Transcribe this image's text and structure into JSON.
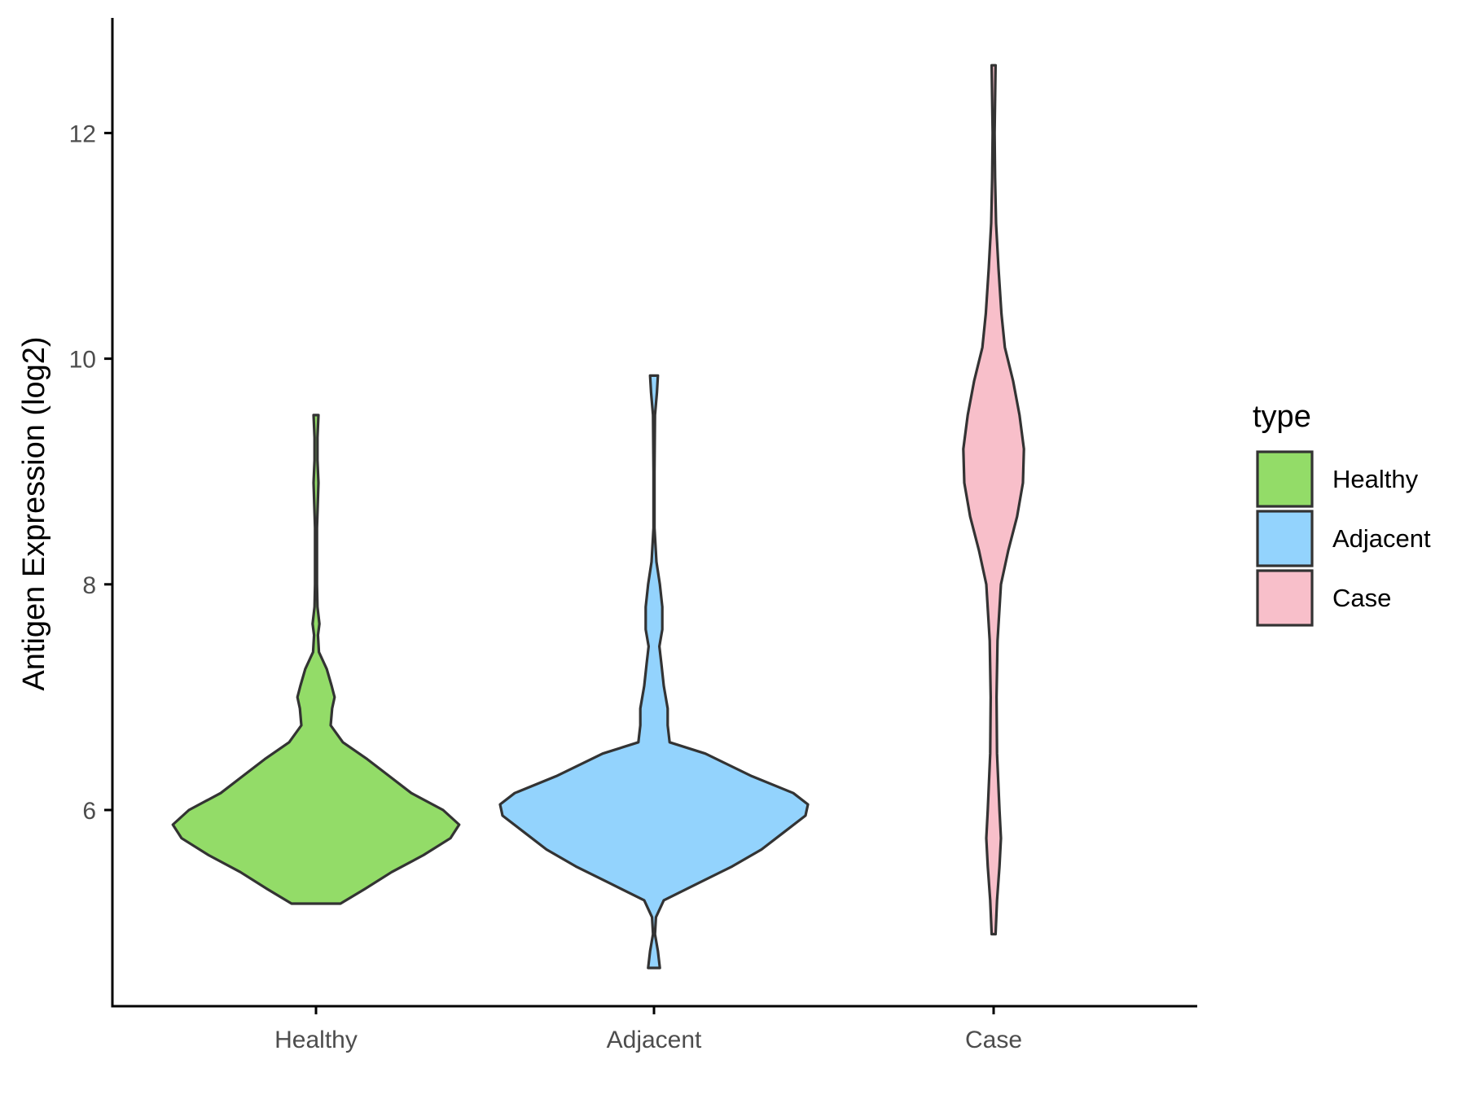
{
  "chart_data": {
    "type": "violin",
    "ylabel": "Antigen Expression (log2)",
    "xlabel": "",
    "categories": [
      "Healthy",
      "Adjacent",
      "Case"
    ],
    "ylim": [
      4.35,
      13.1
    ],
    "yticks": [
      6,
      8,
      10,
      12
    ],
    "grid": false,
    "legend": {
      "title": "type",
      "position": "right",
      "entries": [
        "Healthy",
        "Adjacent",
        "Case"
      ]
    },
    "colors": {
      "Healthy": "#93dc68",
      "Adjacent": "#93d3fd",
      "Case": "#f8bfca",
      "outline": "#333333"
    },
    "series": [
      {
        "name": "Healthy",
        "profile": [
          [
            5.17,
            0.5
          ],
          [
            5.3,
            1.0
          ],
          [
            5.45,
            1.55
          ],
          [
            5.6,
            2.2
          ],
          [
            5.75,
            2.75
          ],
          [
            5.87,
            2.93
          ],
          [
            6.0,
            2.6
          ],
          [
            6.15,
            1.95
          ],
          [
            6.3,
            1.5
          ],
          [
            6.45,
            1.05
          ],
          [
            6.6,
            0.55
          ],
          [
            6.75,
            0.3
          ],
          [
            6.9,
            0.33
          ],
          [
            7.0,
            0.38
          ],
          [
            7.1,
            0.32
          ],
          [
            7.25,
            0.22
          ],
          [
            7.4,
            0.06
          ],
          [
            7.55,
            0.04
          ],
          [
            7.65,
            0.07
          ],
          [
            7.8,
            0.03
          ],
          [
            8.0,
            0.02
          ],
          [
            8.5,
            0.02
          ],
          [
            8.9,
            0.05
          ],
          [
            9.1,
            0.03
          ],
          [
            9.3,
            0.03
          ],
          [
            9.5,
            0.05
          ]
        ]
      },
      {
        "name": "Adjacent",
        "profile": [
          [
            4.6,
            0.12
          ],
          [
            4.75,
            0.08
          ],
          [
            4.9,
            0.02
          ],
          [
            5.05,
            0.04
          ],
          [
            5.2,
            0.2
          ],
          [
            5.35,
            0.9
          ],
          [
            5.5,
            1.6
          ],
          [
            5.65,
            2.2
          ],
          [
            5.8,
            2.65
          ],
          [
            5.95,
            3.1
          ],
          [
            6.05,
            3.15
          ],
          [
            6.15,
            2.85
          ],
          [
            6.3,
            2.0
          ],
          [
            6.5,
            1.05
          ],
          [
            6.6,
            0.32
          ],
          [
            6.75,
            0.28
          ],
          [
            6.9,
            0.28
          ],
          [
            7.1,
            0.2
          ],
          [
            7.3,
            0.15
          ],
          [
            7.45,
            0.11
          ],
          [
            7.6,
            0.17
          ],
          [
            7.8,
            0.17
          ],
          [
            8.0,
            0.12
          ],
          [
            8.2,
            0.05
          ],
          [
            8.5,
            0.01
          ],
          [
            9.0,
            0.01
          ],
          [
            9.5,
            0.02
          ],
          [
            9.7,
            0.06
          ],
          [
            9.85,
            0.08
          ]
        ]
      },
      {
        "name": "Case",
        "profile": [
          [
            4.9,
            0.04
          ],
          [
            5.2,
            0.07
          ],
          [
            5.5,
            0.12
          ],
          [
            5.75,
            0.15
          ],
          [
            6.0,
            0.12
          ],
          [
            6.5,
            0.07
          ],
          [
            7.0,
            0.06
          ],
          [
            7.5,
            0.08
          ],
          [
            8.0,
            0.15
          ],
          [
            8.3,
            0.3
          ],
          [
            8.6,
            0.48
          ],
          [
            8.9,
            0.6
          ],
          [
            9.2,
            0.62
          ],
          [
            9.5,
            0.53
          ],
          [
            9.8,
            0.4
          ],
          [
            10.1,
            0.23
          ],
          [
            10.4,
            0.16
          ],
          [
            10.8,
            0.1
          ],
          [
            11.2,
            0.05
          ],
          [
            11.6,
            0.03
          ],
          [
            12.0,
            0.02
          ],
          [
            12.3,
            0.03
          ],
          [
            12.6,
            0.04
          ]
        ]
      }
    ]
  }
}
